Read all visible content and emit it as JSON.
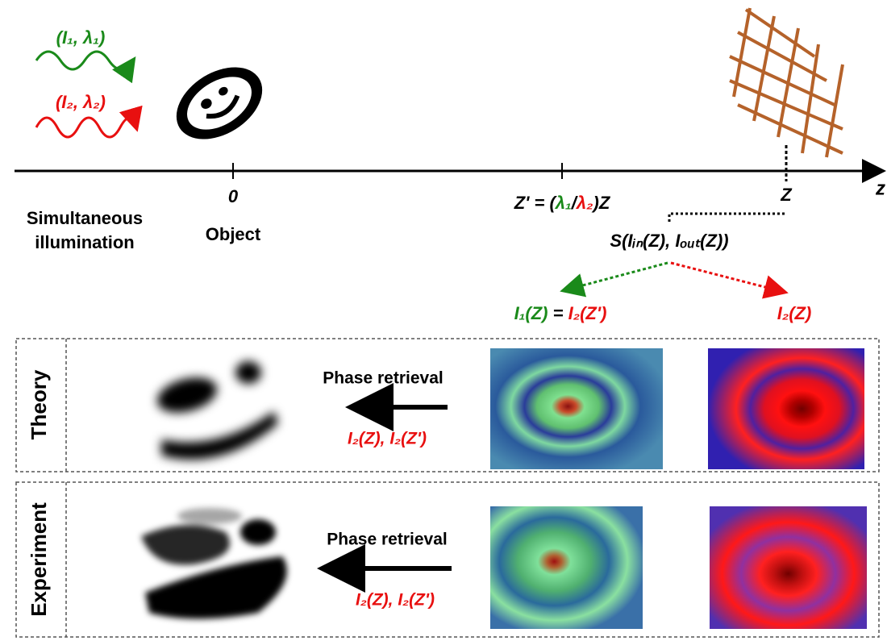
{
  "illumination": {
    "beam1": {
      "label": "(I₁, λ₁)",
      "color": "#1a8a1a"
    },
    "beam2": {
      "label": "(I₂, λ₂)",
      "color": "#e81010"
    },
    "caption": [
      "Simultaneous",
      "illumination"
    ]
  },
  "axis": {
    "origin": "0",
    "object": "Object",
    "z_prime": [
      {
        "text": "Z' = (",
        "color": "#000000"
      },
      {
        "text": "λ₁",
        "color": "#1a8a1a"
      },
      {
        "text": "/",
        "color": "#000000"
      },
      {
        "text": "λ₂",
        "color": "#e81010"
      },
      {
        "text": ")Z",
        "color": "#000000"
      }
    ],
    "z": "Z",
    "axis_name": "z"
  },
  "measurement": {
    "label": "S(Iᵢₙ(Z), Iₒᵤₜ(Z))",
    "left": [
      {
        "text": "I₁(Z)",
        "color": "#1a8a1a"
      },
      {
        "text": " = ",
        "color": "#000000"
      },
      {
        "text": "I₂(Z')",
        "color": "#e81010"
      }
    ],
    "right": {
      "text": "I₂(Z)",
      "color": "#e81010"
    }
  },
  "rows": [
    {
      "name": "Theory",
      "method": "Phase retrieval",
      "inputs": "I₂(Z), I₂(Z')",
      "inputs_color": "#e81010"
    },
    {
      "name": "Experiment",
      "method": "Phase retrieval",
      "inputs": "I₂(Z), I₂(Z')",
      "inputs_color": "#e81010"
    }
  ]
}
